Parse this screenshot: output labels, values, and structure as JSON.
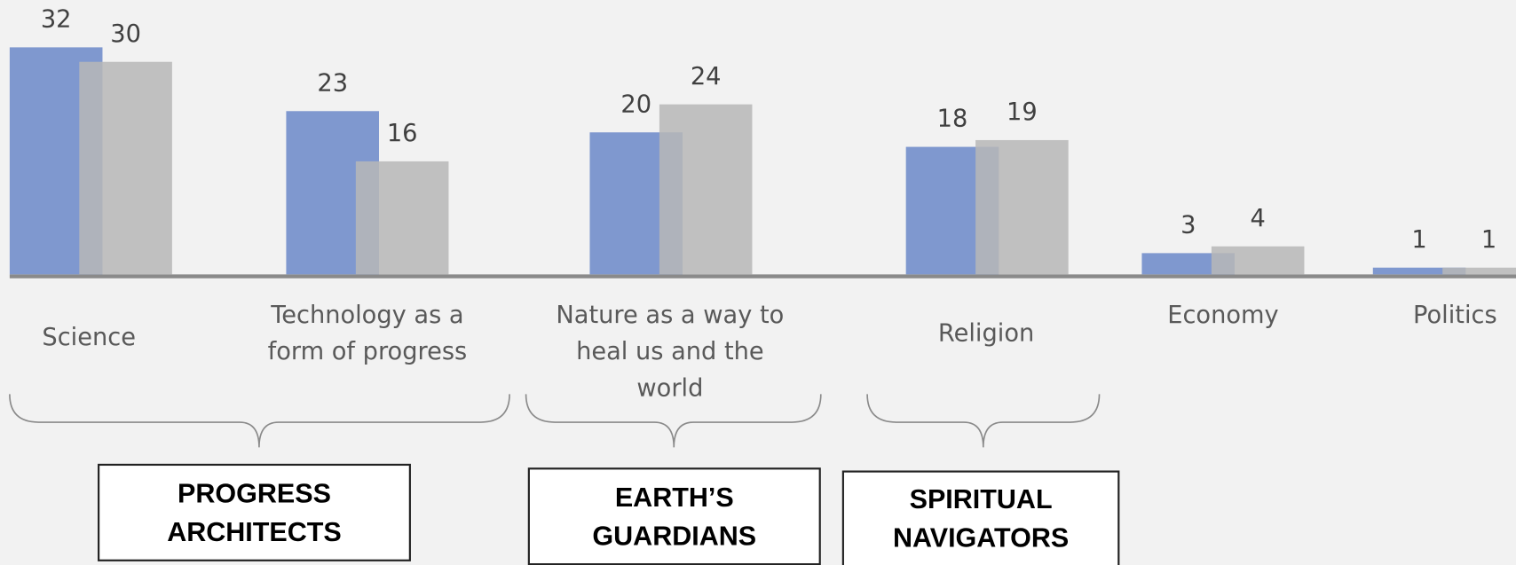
{
  "chart_data": {
    "type": "bar",
    "categories": [
      "Science",
      "Technology as a form of progress",
      "Nature as a way to heal us and the world",
      "Religion",
      "Economy",
      "Politics"
    ],
    "series": [
      {
        "color": "#7f98cf",
        "values": [
          32,
          23,
          20,
          18,
          3,
          1
        ]
      },
      {
        "color": "#b7b7b7",
        "values": [
          30,
          16,
          24,
          19,
          4,
          1
        ]
      }
    ],
    "ylim": [
      0,
      39
    ]
  },
  "groups": [
    {
      "label": "PROGRESS ARCHITECTS"
    },
    {
      "label": "EARTH’S GUARDIANS"
    },
    {
      "label": "SPIRITUAL NAVIGATORS"
    }
  ]
}
